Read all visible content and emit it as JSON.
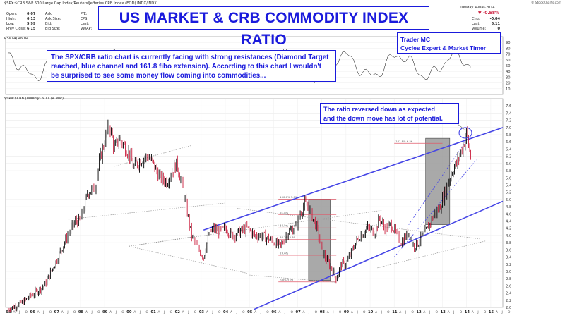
{
  "header": {
    "symbol_line": "$SPX:$CRB S&P 500 Large Cap Index/Reuters/Jefferies CRB Index (EOD) INDX/INDX",
    "watermark": "© StockCharts.com",
    "date": "Tuesday 4-Mar-2014",
    "change_pct": "▼ -0.58%",
    "quote_col1": [
      [
        "Open:",
        "6.07"
      ],
      [
        "High:",
        "6.13"
      ],
      [
        "Low:",
        "5.99"
      ],
      [
        "Prev Close:",
        "6.15"
      ]
    ],
    "quote_col2": [
      "Ask:",
      "Ask Size:",
      "Bid:",
      "Bid Size:"
    ],
    "quote_col3": [
      "P/E:",
      "EPS:",
      "Last:",
      "VWAP:"
    ],
    "quote_col4": [
      "",
      "",
      "",
      "SCTR:"
    ],
    "quote_right": [
      [
        "Chg:",
        "-0.04"
      ],
      [
        "Last:",
        "6.11"
      ],
      [
        "Volume:",
        "0"
      ]
    ],
    "rsi_label": "RSI(14) 46.04",
    "price_label": "$SPX:$CRB (Weekly) 6.11 (4 Mar)"
  },
  "annotations": {
    "title": "US MARKET & CRB COMMODITY INDEX RATIO",
    "author": [
      "Trader MC",
      "Cycles Expert & Market Timer"
    ],
    "commentary": [
      "The SPX/CRB ratio chart is currently facing with strong resistances (Diamond Target",
      "reached, blue channel and 161.8 fibo extension). According to this chart I wouldn't",
      "be surprised to see some money flow coming into commodities..."
    ],
    "callout": [
      "The ratio reversed down as expected",
      "and the down move has lot of potential."
    ]
  },
  "colors": {
    "annotation_blue": "#1a1adc",
    "channel_blue": "#4545e6",
    "fib_red": "#e05a6a",
    "gray_box": "#9a9a9a",
    "bar_up": "#000000",
    "bar_down": "#cc1f3e"
  },
  "chart_data": {
    "type": "line",
    "title": "US MARKET & CRB COMMODITY INDEX RATIO",
    "series": [
      {
        "name": "$SPX:$CRB (Weekly)",
        "x": [
          1995.0,
          1995.5,
          1996.0,
          1996.5,
          1997.0,
          1997.5,
          1997.8,
          1998.0,
          1998.3,
          1998.6,
          1998.8,
          1999.0,
          1999.2,
          1999.4,
          1999.6,
          1999.8,
          2000.0,
          2000.2,
          2000.5,
          2000.8,
          2001.0,
          2001.3,
          2001.6,
          2001.8,
          2002.0,
          2002.3,
          2002.6,
          2002.9,
          2003.1,
          2003.3,
          2003.5,
          2003.8,
          2004.0,
          2004.3,
          2004.6,
          2004.9,
          2005.2,
          2005.5,
          2005.8,
          2006.0,
          2006.3,
          2006.6,
          2006.9,
          2007.1,
          2007.3,
          2007.5,
          2007.8,
          2008.0,
          2008.2,
          2008.4,
          2008.6,
          2008.8,
          2009.0,
          2009.2,
          2009.4,
          2009.6,
          2009.9,
          2010.2,
          2010.4,
          2010.6,
          2010.9,
          2011.1,
          2011.3,
          2011.6,
          2011.8,
          2012.0,
          2012.3,
          2012.6,
          2012.9,
          2013.1,
          2013.4,
          2013.6,
          2013.9,
          2014.0,
          2014.1,
          2014.2
        ],
        "values": [
          1.95,
          2.1,
          2.35,
          2.6,
          3.3,
          4.05,
          4.4,
          4.4,
          5.2,
          5.3,
          6.1,
          6.6,
          7.1,
          6.4,
          6.7,
          6.5,
          6.3,
          5.9,
          6.1,
          6.2,
          6.0,
          5.6,
          5.5,
          5.8,
          6.0,
          5.1,
          4.0,
          3.6,
          3.4,
          4.0,
          4.2,
          4.1,
          4.2,
          4.0,
          4.1,
          4.2,
          4.0,
          4.0,
          3.9,
          3.8,
          3.7,
          4.1,
          4.2,
          4.6,
          4.9,
          4.7,
          4.2,
          3.6,
          3.3,
          3.1,
          2.8,
          3.2,
          3.2,
          3.5,
          3.8,
          4.0,
          4.2,
          4.1,
          4.5,
          4.2,
          4.3,
          4.0,
          3.8,
          4.1,
          3.7,
          3.8,
          4.1,
          4.5,
          4.8,
          5.2,
          5.8,
          6.0,
          6.6,
          6.9,
          6.4,
          6.11
        ]
      }
    ],
    "xlabel": "",
    "ylabel": "",
    "xlim": [
      1994.9,
      2015.5
    ],
    "ylim": [
      2.0,
      7.8
    ],
    "y_ticks": [
      2.0,
      2.2,
      2.4,
      2.6,
      2.8,
      3.0,
      3.2,
      3.4,
      3.6,
      3.8,
      4.0,
      4.2,
      4.4,
      4.6,
      4.8,
      5.0,
      5.2,
      5.4,
      5.6,
      5.8,
      6.0,
      6.2,
      6.4,
      6.6,
      6.8,
      7.0,
      7.2,
      7.4,
      7.6
    ],
    "rsi_ticks": [
      10,
      20,
      30,
      40,
      50,
      60,
      70,
      80,
      90
    ],
    "x_year_labels": [
      "95",
      "96",
      "97",
      "98",
      "99",
      "00",
      "01",
      "02",
      "03",
      "04",
      "05",
      "06",
      "07",
      "08",
      "09",
      "10",
      "11",
      "12",
      "13",
      "14",
      "15"
    ],
    "fib_labels": [
      "161.8% 6.56",
      "100.0% 5.01",
      "61.8%",
      "50.0% 4.21",
      "38.2% 3.89",
      "23.6%",
      "0.0% 2.71"
    ],
    "legend": "top-left",
    "grid": true
  }
}
